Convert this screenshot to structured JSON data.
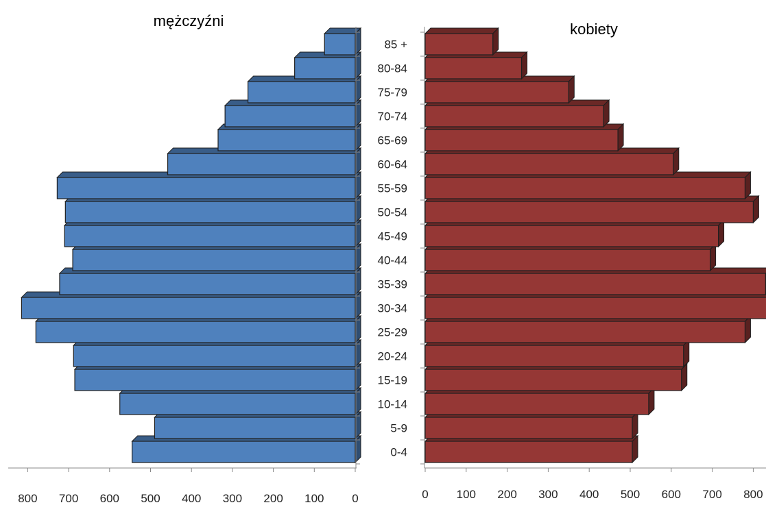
{
  "chart_data": [
    {
      "type": "bar",
      "orientation": "horizontal",
      "mirrored": true,
      "title": "mężczyźni",
      "color": "#4F81BD",
      "categories": [
        "0-4",
        "5-9",
        "10-14",
        "15-19",
        "20-24",
        "25-29",
        "30-34",
        "35-39",
        "40-44",
        "45-49",
        "50-54",
        "55-59",
        "60-64",
        "65-69",
        "70-74",
        "75-79",
        "80-84",
        "85 +"
      ],
      "values": [
        545,
        490,
        575,
        685,
        688,
        780,
        815,
        722,
        690,
        710,
        708,
        728,
        458,
        335,
        318,
        262,
        148,
        75
      ],
      "xlim": [
        0,
        800
      ],
      "xticks": [
        "800",
        "700",
        "600",
        "500",
        "400",
        "300",
        "200",
        "100",
        "0"
      ]
    },
    {
      "type": "bar",
      "orientation": "horizontal",
      "title": "kobiety",
      "color": "#953735",
      "categories": [
        "0-4",
        "5-9",
        "10-14",
        "15-19",
        "20-24",
        "25-29",
        "30-34",
        "35-39",
        "40-44",
        "45-49",
        "50-54",
        "55-59",
        "60-64",
        "65-69",
        "70-74",
        "75-79",
        "80-84",
        "85 +"
      ],
      "values": [
        505,
        505,
        545,
        625,
        630,
        780,
        835,
        830,
        695,
        715,
        800,
        780,
        605,
        470,
        435,
        350,
        235,
        165
      ],
      "xlim": [
        0,
        800
      ],
      "xticks": [
        "0",
        "100",
        "200",
        "300",
        "400",
        "500",
        "600",
        "700",
        "800"
      ]
    }
  ]
}
